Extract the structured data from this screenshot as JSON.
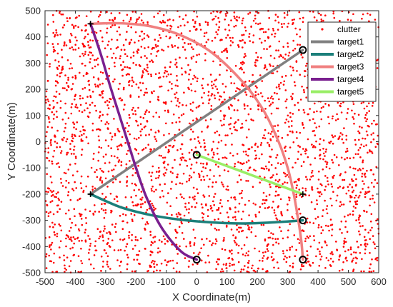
{
  "chart_data": {
    "type": "scatter",
    "xlabel": "X Coordinate(m)",
    "ylabel": "Y Coordinate(m)",
    "xlim": [
      -500,
      600
    ],
    "ylim": [
      -500,
      500
    ],
    "xticks": [
      "-500",
      "-400",
      "-300",
      "-200",
      "-100",
      "0",
      "100",
      "200",
      "300",
      "400",
      "500",
      "600"
    ],
    "yticks": [
      "-500",
      "-400",
      "-300",
      "-200",
      "-100",
      "0",
      "100",
      "200",
      "300",
      "400",
      "500"
    ],
    "grid": false,
    "box": true,
    "legend_position": "top-right",
    "clutter": {
      "name": "clutter",
      "color": "#ff0000",
      "distribution": "uniform",
      "approx_count": 3000,
      "x_range": [
        -500,
        600
      ],
      "y_range": [
        -500,
        500
      ]
    },
    "series": [
      {
        "name": "target1",
        "color": "#808080",
        "points": [
          [
            -350,
            -200
          ],
          [
            350,
            350
          ]
        ],
        "start_marker": "plus",
        "end_marker": "circle"
      },
      {
        "name": "target2",
        "color": "#1b7f7a",
        "points": [
          [
            -350,
            -200
          ],
          [
            -250,
            -250
          ],
          [
            -150,
            -280
          ],
          [
            -50,
            -298
          ],
          [
            50,
            -308
          ],
          [
            150,
            -312
          ],
          [
            250,
            -308
          ],
          [
            350,
            -300
          ]
        ],
        "start_marker": "plus",
        "end_marker": "circle"
      },
      {
        "name": "target3",
        "color": "#f08080",
        "points": [
          [
            -350,
            450
          ],
          [
            -250,
            452
          ],
          [
            -150,
            440
          ],
          [
            -50,
            405
          ],
          [
            50,
            340
          ],
          [
            150,
            230
          ],
          [
            220,
            120
          ],
          [
            270,
            0
          ],
          [
            300,
            -100
          ],
          [
            320,
            -200
          ],
          [
            335,
            -300
          ],
          [
            345,
            -380
          ],
          [
            350,
            -450
          ]
        ],
        "start_marker": "plus",
        "end_marker": "circle"
      },
      {
        "name": "target4",
        "color": "#7a1f8f",
        "points": [
          [
            -350,
            450
          ],
          [
            -315,
            330
          ],
          [
            -290,
            230
          ],
          [
            -260,
            120
          ],
          [
            -230,
            10
          ],
          [
            -200,
            -100
          ],
          [
            -170,
            -200
          ],
          [
            -130,
            -300
          ],
          [
            -90,
            -370
          ],
          [
            -45,
            -425
          ],
          [
            0,
            -450
          ]
        ],
        "start_marker": "plus",
        "end_marker": "circle"
      },
      {
        "name": "target5",
        "color": "#99ee66",
        "points": [
          [
            0,
            -50
          ],
          [
            350,
            -200
          ]
        ],
        "start_marker": "circle",
        "end_marker": "plus"
      }
    ]
  }
}
